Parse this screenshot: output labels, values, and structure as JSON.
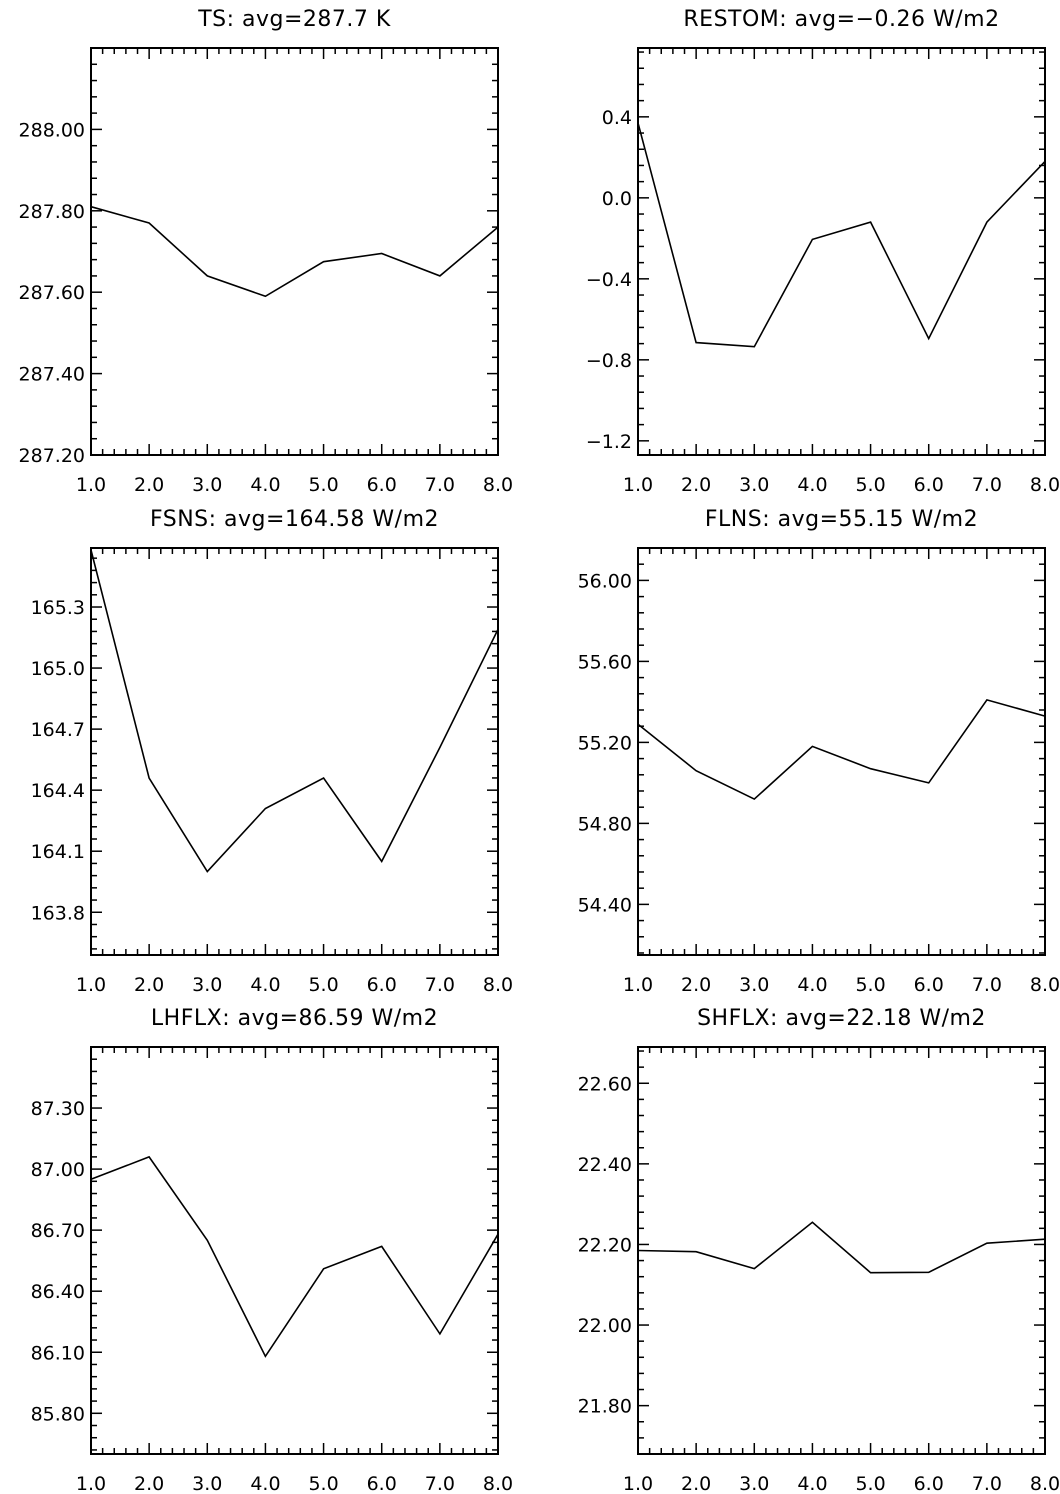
{
  "chart_data": [
    {
      "type": "line",
      "title": "TS: avg=287.7 K",
      "x": [
        1,
        2,
        3,
        4,
        5,
        6,
        7,
        8
      ],
      "values": [
        287.81,
        287.77,
        287.64,
        287.59,
        287.675,
        287.695,
        287.64,
        287.76
      ],
      "xlim": [
        1,
        8
      ],
      "ylim": [
        287.2,
        288.2
      ],
      "xticks": [
        1,
        2,
        3,
        4,
        5,
        6,
        7,
        8
      ],
      "xtick_labels": [
        "1.0",
        "2.0",
        "3.0",
        "4.0",
        "5.0",
        "6.0",
        "7.0",
        "8.0"
      ],
      "yticks": [
        287.2,
        287.4,
        287.6,
        287.8,
        288.0
      ],
      "ytick_labels": [
        "287.20",
        "287.40",
        "287.60",
        "287.80",
        "288.00"
      ],
      "minor_y_step": 0.04,
      "xlabel": "",
      "ylabel": "",
      "grid": false
    },
    {
      "type": "line",
      "title": "RESTOM: avg=−0.26 W/m2",
      "x": [
        1,
        2,
        3,
        4,
        5,
        6,
        7,
        8
      ],
      "values": [
        0.37,
        -0.715,
        -0.735,
        -0.205,
        -0.12,
        -0.695,
        -0.12,
        0.18
      ],
      "xlim": [
        1,
        8
      ],
      "ylim": [
        -1.27,
        0.74
      ],
      "xticks": [
        1,
        2,
        3,
        4,
        5,
        6,
        7,
        8
      ],
      "xtick_labels": [
        "1.0",
        "2.0",
        "3.0",
        "4.0",
        "5.0",
        "6.0",
        "7.0",
        "8.0"
      ],
      "yticks": [
        -1.2,
        -0.8,
        -0.4,
        0.0,
        0.4
      ],
      "ytick_labels": [
        "−1.2",
        "−0.8",
        "−0.4",
        "0.0",
        "0.4"
      ],
      "minor_y_step": 0.08,
      "xlabel": "",
      "ylabel": "",
      "grid": false
    },
    {
      "type": "line",
      "title": "FSNS: avg=164.58 W/m2",
      "x": [
        1,
        2,
        3,
        4,
        5,
        6,
        7,
        8
      ],
      "values": [
        165.58,
        164.46,
        164.0,
        164.31,
        164.46,
        164.05,
        164.61,
        165.19
      ],
      "xlim": [
        1,
        8
      ],
      "ylim": [
        163.59,
        165.59
      ],
      "xticks": [
        1,
        2,
        3,
        4,
        5,
        6,
        7,
        8
      ],
      "xtick_labels": [
        "1.0",
        "2.0",
        "3.0",
        "4.0",
        "5.0",
        "6.0",
        "7.0",
        "8.0"
      ],
      "yticks": [
        163.8,
        164.1,
        164.4,
        164.7,
        165.0,
        165.3
      ],
      "ytick_labels": [
        "163.8",
        "164.1",
        "164.4",
        "164.7",
        "165.0",
        "165.3"
      ],
      "minor_y_step": 0.06,
      "xlabel": "",
      "ylabel": "",
      "grid": false
    },
    {
      "type": "line",
      "title": "FLNS: avg=55.15 W/m2",
      "x": [
        1,
        2,
        3,
        4,
        5,
        6,
        7,
        8
      ],
      "values": [
        55.29,
        55.06,
        54.92,
        55.18,
        55.07,
        55.0,
        55.41,
        55.33
      ],
      "xlim": [
        1,
        8
      ],
      "ylim": [
        54.15,
        56.16
      ],
      "xticks": [
        1,
        2,
        3,
        4,
        5,
        6,
        7,
        8
      ],
      "xtick_labels": [
        "1.0",
        "2.0",
        "3.0",
        "4.0",
        "5.0",
        "6.0",
        "7.0",
        "8.0"
      ],
      "yticks": [
        54.4,
        54.8,
        55.2,
        55.6,
        56.0
      ],
      "ytick_labels": [
        "54.40",
        "54.80",
        "55.20",
        "55.60",
        "56.00"
      ],
      "minor_y_step": 0.08,
      "xlabel": "",
      "ylabel": "",
      "grid": false
    },
    {
      "type": "line",
      "title": "LHFLX: avg=86.59 W/m2",
      "x": [
        1,
        2,
        3,
        4,
        5,
        6,
        7,
        8
      ],
      "values": [
        86.95,
        87.06,
        86.65,
        86.08,
        86.51,
        86.62,
        86.19,
        86.68
      ],
      "xlim": [
        1,
        8
      ],
      "ylim": [
        85.6,
        87.6
      ],
      "xticks": [
        1,
        2,
        3,
        4,
        5,
        6,
        7,
        8
      ],
      "xtick_labels": [
        "1.0",
        "2.0",
        "3.0",
        "4.0",
        "5.0",
        "6.0",
        "7.0",
        "8.0"
      ],
      "yticks": [
        85.8,
        86.1,
        86.4,
        86.7,
        87.0,
        87.3
      ],
      "ytick_labels": [
        "85.80",
        "86.10",
        "86.40",
        "86.70",
        "87.00",
        "87.30"
      ],
      "minor_y_step": 0.06,
      "xlabel": "",
      "ylabel": "",
      "grid": false
    },
    {
      "type": "line",
      "title": "SHFLX: avg=22.18 W/m2",
      "x": [
        1,
        2,
        3,
        4,
        5,
        6,
        7,
        8
      ],
      "values": [
        22.185,
        22.182,
        22.14,
        22.255,
        22.13,
        22.131,
        22.203,
        22.213
      ],
      "xlim": [
        1,
        8
      ],
      "ylim": [
        21.68,
        22.69
      ],
      "xticks": [
        1,
        2,
        3,
        4,
        5,
        6,
        7,
        8
      ],
      "xtick_labels": [
        "1.0",
        "2.0",
        "3.0",
        "4.0",
        "5.0",
        "6.0",
        "7.0",
        "8.0"
      ],
      "yticks": [
        21.8,
        22.0,
        22.2,
        22.4,
        22.6
      ],
      "ytick_labels": [
        "21.80",
        "22.00",
        "22.20",
        "22.40",
        "22.60"
      ],
      "minor_y_step": 0.04,
      "xlabel": "",
      "ylabel": "",
      "grid": false
    }
  ],
  "colors": {
    "line": "#000000",
    "axis": "#000000",
    "background": "#ffffff"
  }
}
